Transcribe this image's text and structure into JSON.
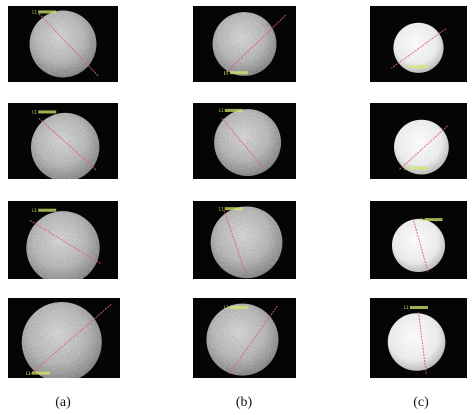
{
  "figure": {
    "column_labels": [
      "(a)",
      "(b)",
      "(c)"
    ],
    "scale_annotation": "L1",
    "line_color": "#e0607a",
    "annotation_color": "#d6e86a",
    "background_color": "#050505"
  },
  "columns": [
    {
      "label": "(a)",
      "particle_tone": "grey",
      "rows": 4
    },
    {
      "label": "(b)",
      "particle_tone": "grey",
      "rows": 4
    },
    {
      "label": "(c)",
      "particle_tone": "white",
      "rows": 4
    }
  ]
}
